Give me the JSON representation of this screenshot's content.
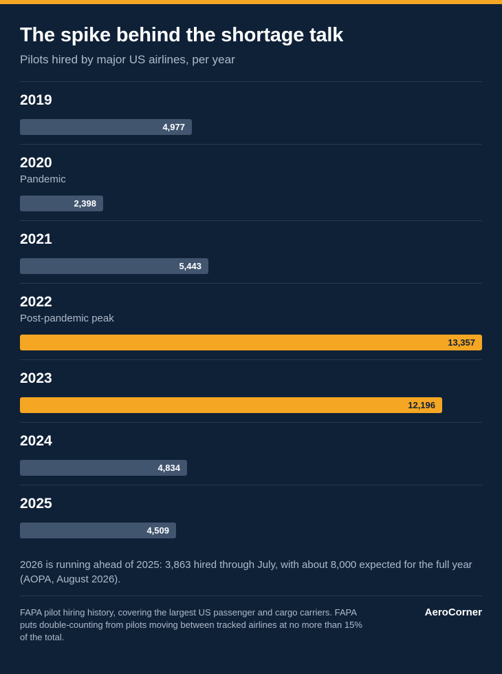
{
  "header": {
    "title": "The spike behind the shortage talk",
    "subtitle": "Pilots hired by major US airlines, per year"
  },
  "chart_data": {
    "type": "bar",
    "orientation": "horizontal",
    "categories": [
      "2019",
      "2020",
      "2021",
      "2022",
      "2023",
      "2024",
      "2025"
    ],
    "values": [
      4977,
      2398,
      5443,
      13357,
      12196,
      4834,
      4509
    ],
    "value_labels": [
      "4,977",
      "2,398",
      "5,443",
      "13,357",
      "12,196",
      "4,834",
      "4,509"
    ],
    "notes": [
      "",
      "Pandemic",
      "",
      "Post-pandemic peak",
      "",
      "",
      ""
    ],
    "highlighted": [
      false,
      false,
      false,
      true,
      true,
      false,
      false
    ],
    "xlim": [
      0,
      13357
    ],
    "title": "The spike behind the shortage talk",
    "subtitle": "Pilots hired by major US airlines, per year",
    "colors": {
      "default": "#41556f",
      "highlight": "#f5a623"
    }
  },
  "footer": {
    "note": "2026 is running ahead of 2025: 3,863 hired through July, with about 8,000 expected for the full year (AOPA, August 2026).",
    "source": "FAPA pilot hiring history, covering the largest US passenger and cargo carriers. FAPA puts double-counting from pilots moving between tracked airlines at no more than 15% of the total.",
    "brand": "AeroCorner"
  },
  "colors": {
    "background": "#0f2137",
    "accent": "#f5a623",
    "bar": "#41556f",
    "muted_text": "#aebacb"
  }
}
